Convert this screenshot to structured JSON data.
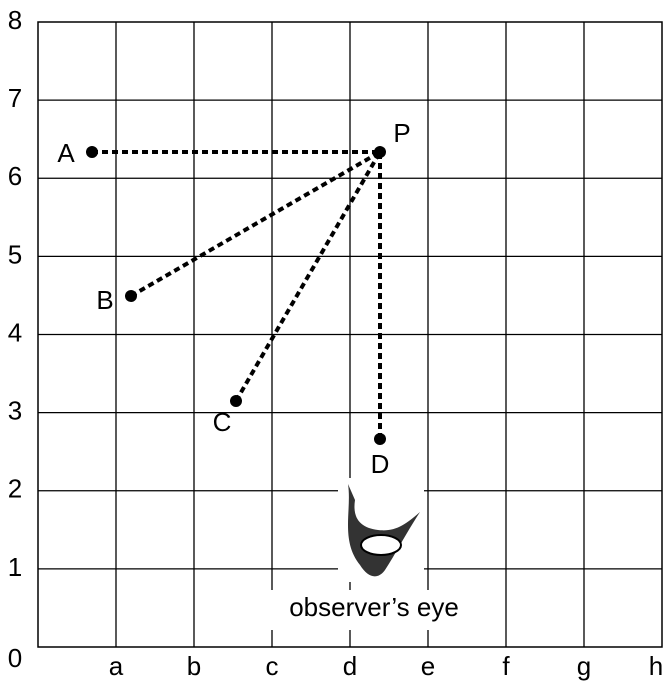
{
  "y_axis_labels": [
    "0",
    "1",
    "2",
    "3",
    "4",
    "5",
    "6",
    "7",
    "8"
  ],
  "x_axis_labels": [
    "a",
    "b",
    "c",
    "d",
    "e",
    "f",
    "g",
    "h"
  ],
  "points": [
    {
      "label": "A"
    },
    {
      "label": "B"
    },
    {
      "label": "C"
    },
    {
      "label": "D"
    },
    {
      "label": "P"
    }
  ],
  "caption": "observer’s eye"
}
